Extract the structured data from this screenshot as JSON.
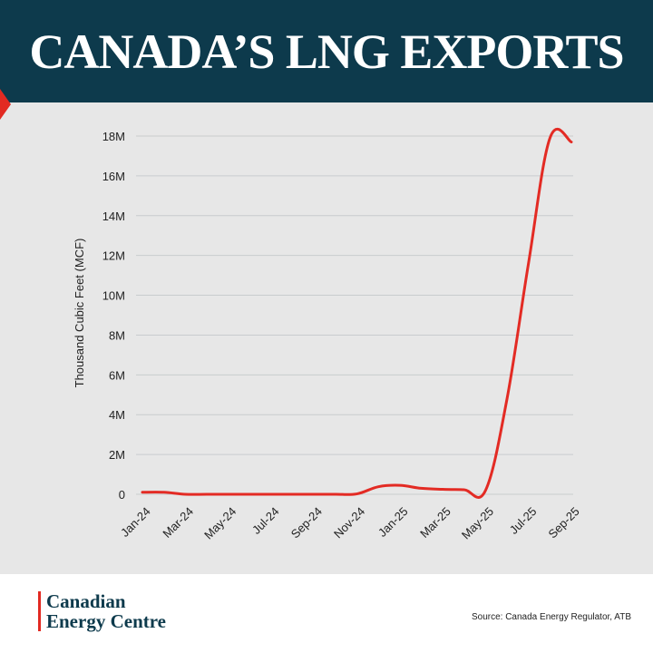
{
  "header": {
    "title": "CANADA’S LNG EXPORTS"
  },
  "chart_data": {
    "type": "line",
    "y_label": "Thousand Cubic Feet (MCF)",
    "categories": [
      "Jan-24",
      null,
      "Mar-24",
      null,
      "May-24",
      null,
      "Jul-24",
      null,
      "Sep-24",
      null,
      "Nov-24",
      null,
      "Jan-25",
      null,
      "Mar-25",
      null,
      "May-25",
      null,
      "Jul-25",
      null,
      "Sep-25"
    ],
    "series": [
      {
        "name": "LNG exports",
        "color": "#e32b24",
        "values": [
          100000,
          100000,
          0,
          0,
          0,
          0,
          0,
          0,
          0,
          0,
          20000,
          380000,
          450000,
          300000,
          250000,
          230000,
          200000,
          4800000,
          11600000,
          17900000,
          17700000
        ]
      }
    ],
    "ylim": [
      0,
      18000000
    ],
    "yticks": [
      0,
      {
        "value": 2000000,
        "label": "2M"
      },
      {
        "value": 4000000,
        "label": "4M"
      },
      {
        "value": 6000000,
        "label": "6M"
      },
      {
        "value": 8000000,
        "label": "8M"
      },
      {
        "value": 10000000,
        "label": "10M"
      },
      {
        "value": 12000000,
        "label": "12M"
      },
      {
        "value": 14000000,
        "label": "14M"
      },
      {
        "value": 16000000,
        "label": "16M"
      },
      {
        "value": 18000000,
        "label": "18M"
      }
    ],
    "grid": true
  },
  "footer": {
    "logo": [
      "Canadian",
      "Energy Centre"
    ],
    "source": "Source: Canada Energy Regulator, ATB"
  }
}
